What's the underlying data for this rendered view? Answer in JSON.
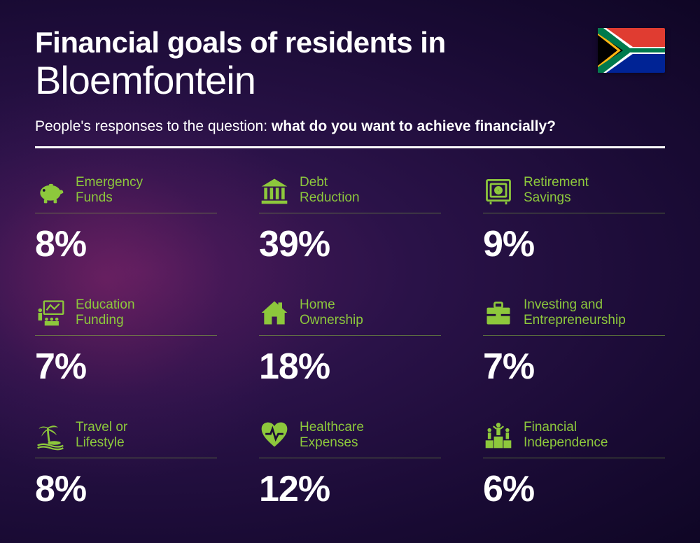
{
  "header": {
    "title_line1": "Financial goals of residents in",
    "title_city": "Bloemfontein",
    "subtitle_prefix": "People's responses to the question: ",
    "subtitle_bold": "what do you want to achieve financially?"
  },
  "accent_color": "#8dc83c",
  "text_color": "#ffffff",
  "items": [
    {
      "icon": "piggy-bank",
      "label": "Emergency\nFunds",
      "value": "8%"
    },
    {
      "icon": "bank",
      "label": "Debt\nReduction",
      "value": "39%"
    },
    {
      "icon": "safe",
      "label": "Retirement\nSavings",
      "value": "9%"
    },
    {
      "icon": "presentation",
      "label": "Education\nFunding",
      "value": "7%"
    },
    {
      "icon": "house",
      "label": "Home\nOwnership",
      "value": "18%"
    },
    {
      "icon": "briefcase",
      "label": "Investing and\nEntrepreneurship",
      "value": "7%"
    },
    {
      "icon": "palm",
      "label": "Travel or\nLifestyle",
      "value": "8%"
    },
    {
      "icon": "heart-pulse",
      "label": "Healthcare\nExpenses",
      "value": "12%"
    },
    {
      "icon": "podium",
      "label": "Financial\nIndependence",
      "value": "6%"
    }
  ],
  "flag": {
    "country": "South Africa"
  }
}
